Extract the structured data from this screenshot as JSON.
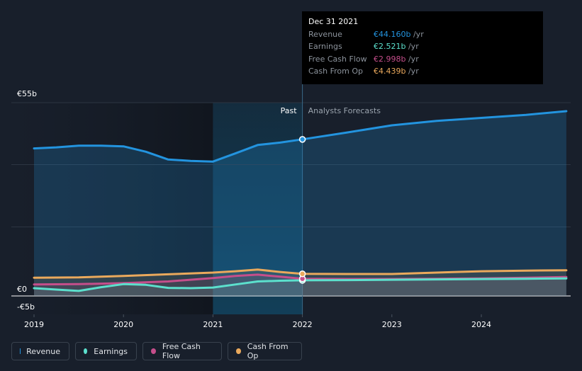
{
  "chart_data": {
    "type": "line",
    "y_unit": "€",
    "ylim": [
      -5,
      55
    ],
    "y_tick_labels": [
      "€55b",
      "€0",
      "-€5b"
    ],
    "y_ticks": [
      55,
      0,
      -5
    ],
    "x_tick_labels": [
      "2019",
      "2020",
      "2021",
      "2022",
      "2023",
      "2024"
    ],
    "x_ticks": [
      2019,
      2020,
      2021,
      2022,
      2023,
      2024
    ],
    "xlim": [
      2018.75,
      2024.95
    ],
    "past_label": "Past",
    "forecast_label": "Analysts Forecasts",
    "past_end": 2022.0,
    "highlight_start": 2021.0,
    "series": [
      {
        "name": "Revenue",
        "color": "#2394df",
        "points": [
          [
            2019.0,
            41.5
          ],
          [
            2019.25,
            41.8
          ],
          [
            2019.5,
            42.3
          ],
          [
            2019.75,
            42.3
          ],
          [
            2020.0,
            42.1
          ],
          [
            2020.25,
            40.5
          ],
          [
            2020.5,
            38.2
          ],
          [
            2020.75,
            37.8
          ],
          [
            2021.0,
            37.6
          ],
          [
            2021.25,
            40.0
          ],
          [
            2021.5,
            42.5
          ],
          [
            2021.75,
            43.2
          ],
          [
            2022.0,
            44.16
          ],
          [
            2022.5,
            46.2
          ],
          [
            2023.0,
            48.3
          ],
          [
            2023.5,
            49.6
          ],
          [
            2024.0,
            50.5
          ],
          [
            2024.5,
            51.4
          ],
          [
            2024.95,
            52.5
          ]
        ]
      },
      {
        "name": "Earnings",
        "color": "#5ce0cd",
        "points": [
          [
            2019.0,
            0.2
          ],
          [
            2019.25,
            -0.2
          ],
          [
            2019.5,
            -0.6
          ],
          [
            2019.75,
            0.5
          ],
          [
            2020.0,
            1.4
          ],
          [
            2020.25,
            1.2
          ],
          [
            2020.5,
            0.3
          ],
          [
            2020.75,
            0.2
          ],
          [
            2021.0,
            0.4
          ],
          [
            2021.25,
            1.3
          ],
          [
            2021.5,
            2.2
          ],
          [
            2021.75,
            2.4
          ],
          [
            2022.0,
            2.521
          ],
          [
            2022.5,
            2.6
          ],
          [
            2023.0,
            2.7
          ],
          [
            2023.5,
            2.8
          ],
          [
            2024.0,
            2.9
          ],
          [
            2024.5,
            3.0
          ],
          [
            2024.95,
            3.1
          ]
        ]
      },
      {
        "name": "Free Cash Flow",
        "color": "#c54e8b",
        "points": [
          [
            2019.0,
            1.3
          ],
          [
            2019.5,
            1.4
          ],
          [
            2020.0,
            1.7
          ],
          [
            2020.5,
            2.2
          ],
          [
            2021.0,
            3.2
          ],
          [
            2021.25,
            3.8
          ],
          [
            2021.5,
            4.2
          ],
          [
            2021.75,
            3.6
          ],
          [
            2022.0,
            2.998
          ],
          [
            2022.5,
            2.9
          ],
          [
            2023.0,
            2.9
          ],
          [
            2023.5,
            3.0
          ],
          [
            2024.0,
            3.1
          ],
          [
            2024.5,
            3.3
          ],
          [
            2024.95,
            3.5
          ]
        ]
      },
      {
        "name": "Cash From Op",
        "color": "#eaa95c",
        "points": [
          [
            2019.0,
            3.3
          ],
          [
            2019.5,
            3.4
          ],
          [
            2020.0,
            3.8
          ],
          [
            2020.5,
            4.3
          ],
          [
            2021.0,
            4.8
          ],
          [
            2021.25,
            5.2
          ],
          [
            2021.5,
            5.7
          ],
          [
            2021.75,
            5.0
          ],
          [
            2022.0,
            4.439
          ],
          [
            2022.5,
            4.4
          ],
          [
            2023.0,
            4.4
          ],
          [
            2023.5,
            4.8
          ],
          [
            2024.0,
            5.2
          ],
          [
            2024.5,
            5.4
          ],
          [
            2024.95,
            5.5
          ]
        ]
      }
    ],
    "tooltip": {
      "date": "Dec 31 2021",
      "rows": [
        {
          "label": "Revenue",
          "value": "€44.160b",
          "unit": " /yr",
          "color": "#2394df"
        },
        {
          "label": "Earnings",
          "value": "€2.521b",
          "unit": " /yr",
          "color": "#5ce0cd"
        },
        {
          "label": "Free Cash Flow",
          "value": "€2.998b",
          "unit": " /yr",
          "color": "#c54e8b"
        },
        {
          "label": "Cash From Op",
          "value": "€4.439b",
          "unit": " /yr",
          "color": "#eaa95c"
        }
      ]
    }
  },
  "legend": [
    {
      "label": "Revenue",
      "color": "#2394df"
    },
    {
      "label": "Earnings",
      "color": "#5ce0cd"
    },
    {
      "label": "Free Cash Flow",
      "color": "#c54e8b"
    },
    {
      "label": "Cash From Op",
      "color": "#eaa95c"
    }
  ]
}
